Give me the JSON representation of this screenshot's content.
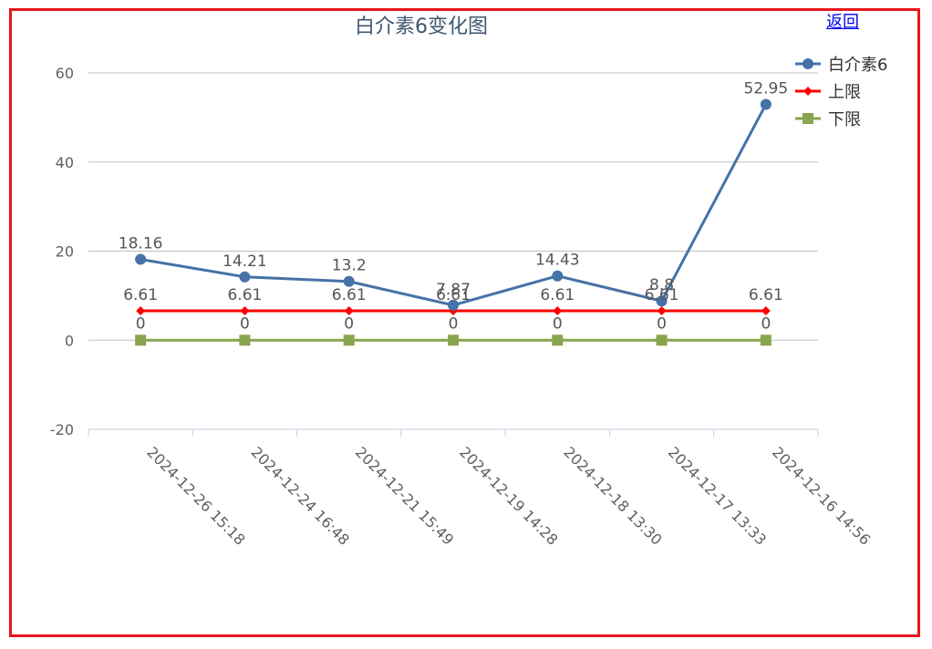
{
  "back_link": "返回",
  "chart_data": {
    "type": "line",
    "title": "白介素6变化图",
    "categories": [
      "2024-12-26 15:18",
      "2024-12-24 16:48",
      "2024-12-21 15:49",
      "2024-12-19 14:28",
      "2024-12-18 13:30",
      "2024-12-17 13:33",
      "2024-12-16 14:56"
    ],
    "ylim": [
      -20,
      60
    ],
    "yticks": [
      -20,
      0,
      20,
      40,
      60
    ],
    "grid": true,
    "legend_position": "top-right",
    "series": [
      {
        "name": "白介素6",
        "values": [
          18.16,
          14.21,
          13.2,
          7.87,
          14.43,
          8.8,
          52.95
        ],
        "color": "#4572a7",
        "marker": "circle"
      },
      {
        "name": "上限",
        "values": [
          6.61,
          6.61,
          6.61,
          6.61,
          6.61,
          6.61,
          6.61
        ],
        "color": "#ff0000",
        "marker": "diamond"
      },
      {
        "name": "下限",
        "values": [
          0,
          0,
          0,
          0,
          0,
          0,
          0
        ],
        "color": "#89a54e",
        "marker": "square"
      }
    ]
  }
}
